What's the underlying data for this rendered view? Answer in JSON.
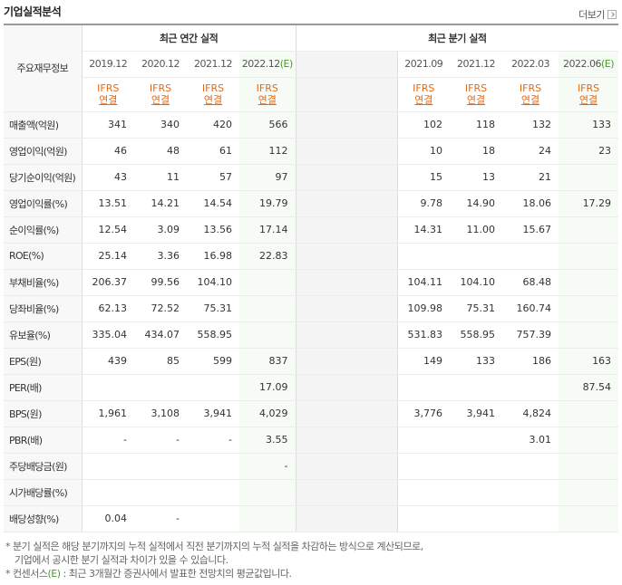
{
  "header": {
    "title": "기업실적분석",
    "more_label": "더보기"
  },
  "table": {
    "corner_label": "주요재무정보",
    "annual_group_label": "최근 연간 실적",
    "quarter_group_label": "최근 분기 실적",
    "annual_periods": [
      {
        "label": "2019.12",
        "estimate": false
      },
      {
        "label": "2020.12",
        "estimate": false
      },
      {
        "label": "2021.12",
        "estimate": false
      },
      {
        "label": "2022.12",
        "estimate": true,
        "suffix": "(E)"
      }
    ],
    "quarter_periods": [
      {
        "label": "2021.09",
        "estimate": false
      },
      {
        "label": "2021.12",
        "estimate": false
      },
      {
        "label": "2022.03",
        "estimate": false
      },
      {
        "label": "2022.06",
        "estimate": true,
        "suffix": "(E)"
      }
    ],
    "ifrs_top": "IFRS",
    "ifrs_bottom": "연결",
    "rows": [
      {
        "label": "매출액(억원)",
        "annual": [
          "341",
          "340",
          "420",
          "566"
        ],
        "quarter": [
          "102",
          "118",
          "132",
          "133"
        ],
        "group_start": false
      },
      {
        "label": "영업이익(억원)",
        "annual": [
          "46",
          "48",
          "61",
          "112"
        ],
        "quarter": [
          "10",
          "18",
          "24",
          "23"
        ],
        "group_start": false
      },
      {
        "label": "당기순이익(억원)",
        "annual": [
          "43",
          "11",
          "57",
          "97"
        ],
        "quarter": [
          "15",
          "13",
          "21",
          ""
        ],
        "group_start": false
      },
      {
        "label": "영업이익률(%)",
        "annual": [
          "13.51",
          "14.21",
          "14.54",
          "19.79"
        ],
        "quarter": [
          "9.78",
          "14.90",
          "18.06",
          "17.29"
        ],
        "group_start": true
      },
      {
        "label": "순이익률(%)",
        "annual": [
          "12.54",
          "3.09",
          "13.56",
          "17.14"
        ],
        "quarter": [
          "14.31",
          "11.00",
          "15.67",
          ""
        ],
        "group_start": false
      },
      {
        "label": "ROE(%)",
        "annual": [
          "25.14",
          "3.36",
          "16.98",
          "22.83"
        ],
        "quarter": [
          "",
          "",
          "",
          ""
        ],
        "group_start": false
      },
      {
        "label": "부채비율(%)",
        "annual": [
          "206.37",
          "99.56",
          "104.10",
          ""
        ],
        "quarter": [
          "104.11",
          "104.10",
          "68.48",
          ""
        ],
        "group_start": true
      },
      {
        "label": "당좌비율(%)",
        "annual": [
          "62.13",
          "72.52",
          "75.31",
          ""
        ],
        "quarter": [
          "109.98",
          "75.31",
          "160.74",
          ""
        ],
        "group_start": false
      },
      {
        "label": "유보율(%)",
        "annual": [
          "335.04",
          "434.07",
          "558.95",
          ""
        ],
        "quarter": [
          "531.83",
          "558.95",
          "757.39",
          ""
        ],
        "group_start": false
      },
      {
        "label": "EPS(원)",
        "annual": [
          "439",
          "85",
          "599",
          "837"
        ],
        "quarter": [
          "149",
          "133",
          "186",
          "163"
        ],
        "group_start": true
      },
      {
        "label": "PER(배)",
        "annual": [
          "",
          "",
          "",
          "17.09"
        ],
        "quarter": [
          "",
          "",
          "",
          "87.54"
        ],
        "group_start": false
      },
      {
        "label": "BPS(원)",
        "annual": [
          "1,961",
          "3,108",
          "3,941",
          "4,029"
        ],
        "quarter": [
          "3,776",
          "3,941",
          "4,824",
          ""
        ],
        "group_start": false
      },
      {
        "label": "PBR(배)",
        "annual": [
          "-",
          "-",
          "-",
          "3.55"
        ],
        "quarter": [
          "",
          "",
          "3.01",
          ""
        ],
        "group_start": false
      },
      {
        "label": "주당배당금(원)",
        "annual": [
          "",
          "",
          "",
          "-"
        ],
        "quarter": [
          "",
          "",
          "",
          ""
        ],
        "group_start": true
      },
      {
        "label": "시가배당률(%)",
        "annual": [
          "",
          "",
          "",
          ""
        ],
        "quarter": [
          "",
          "",
          "",
          ""
        ],
        "group_start": false
      },
      {
        "label": "배당성향(%)",
        "annual": [
          "0.04",
          "-",
          "",
          ""
        ],
        "quarter": [
          "",
          "",
          "",
          ""
        ],
        "group_start": false
      }
    ]
  },
  "notes": {
    "line1": "* 분기 실적은 해당 분기까지의 누적 실적에서 직전 분기까지의 누적 실적을 차감하는 방식으로 계산되므로,",
    "line2": "기업에서 공시한 분기 실적과 차이가 있을 수 있습니다.",
    "line3_prefix": "* 컨센서스",
    "line3_mark": "(E)",
    "line3_suffix": " : 최근 3개월간 증권사에서 발표한 전망치의 평균값입니다."
  },
  "colors": {
    "ifrs": "#e66a15",
    "estimate": "#4a9a2a",
    "estimate_bg": "#f7fbf5"
  }
}
